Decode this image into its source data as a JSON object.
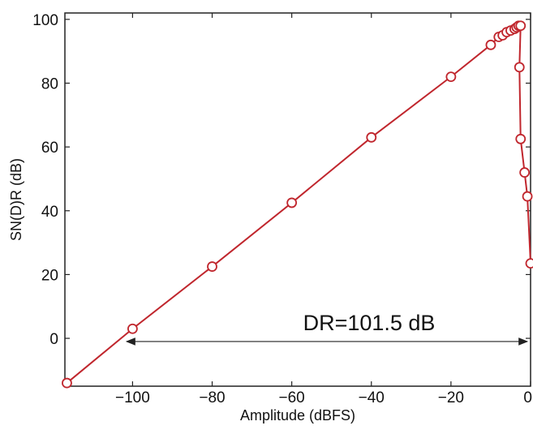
{
  "chart_data": {
    "type": "line",
    "title": "",
    "xlabel": "Amplitude (dBFS)",
    "ylabel": "SN(D)R (dB)",
    "xlim": [
      -117,
      0
    ],
    "ylim": [
      -15,
      102
    ],
    "xticks": [
      -100,
      -80,
      -60,
      -40,
      -20,
      0
    ],
    "yticks": [
      0,
      20,
      40,
      60,
      80,
      100
    ],
    "xtick_labels": [
      "−100",
      "−80",
      "−60",
      "−40",
      "−20",
      "0"
    ],
    "ytick_labels": [
      "0",
      "20",
      "40",
      "60",
      "80",
      "100"
    ],
    "grid": false,
    "legend": false,
    "series": [
      {
        "color": "#c0262d",
        "marker": "circle-open",
        "x": [
          -116.5,
          -100,
          -80,
          -60,
          -40,
          -20,
          -10,
          -8,
          -7,
          -6,
          -5,
          -4,
          -3.5,
          -3,
          -2.5,
          -2.8,
          -2.5,
          -1.5,
          -0.8,
          0
        ],
        "y": [
          -14,
          3,
          22.5,
          42.5,
          63,
          82,
          92,
          94.5,
          95,
          96,
          96.5,
          97,
          97.5,
          98,
          98,
          85,
          62.5,
          52,
          44.5,
          23.5
        ]
      }
    ],
    "annotations": [
      {
        "text": "DR=101.5 dB",
        "type": "double-arrow",
        "x_from": -101.5,
        "x_to": 0,
        "y": -1
      }
    ]
  }
}
